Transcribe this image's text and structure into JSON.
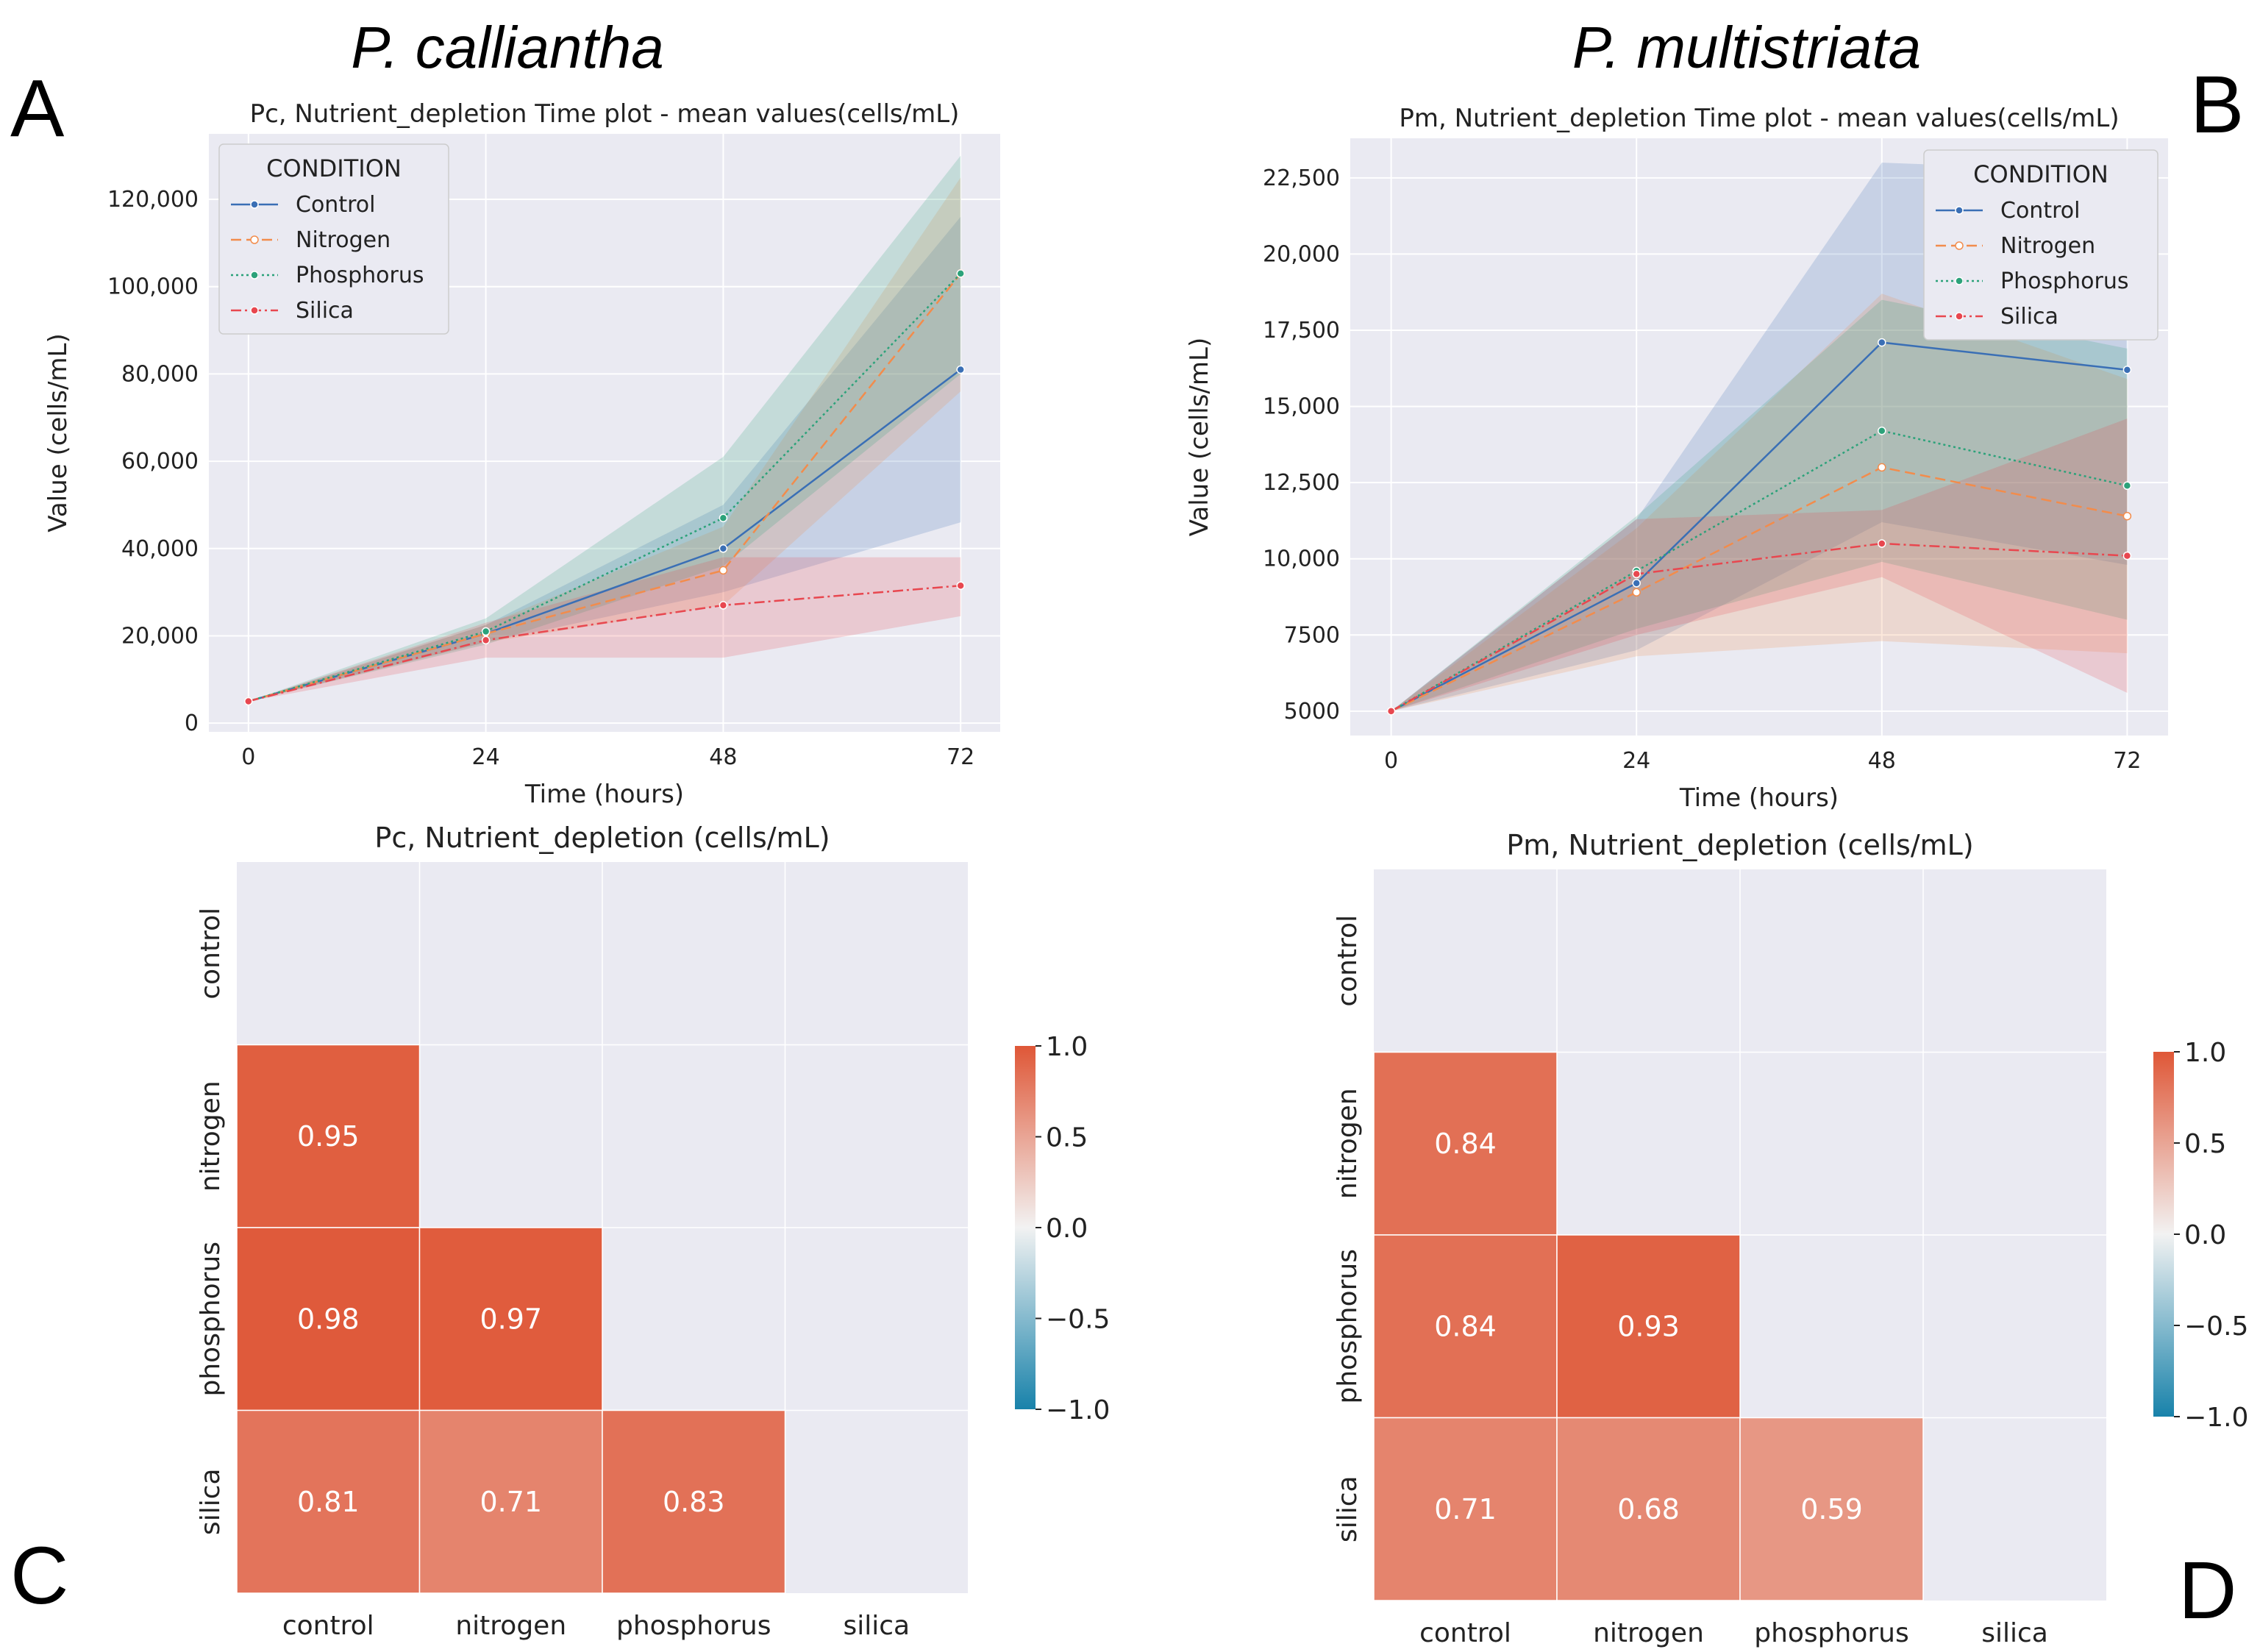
{
  "figure": {
    "species_left": "P. calliantha",
    "species_right": "P. multistriata",
    "panel_letters": [
      "A",
      "B",
      "C",
      "D"
    ]
  },
  "legend": {
    "title": "CONDITION",
    "entries": [
      "Control",
      "Nitrogen",
      "Phosphorus",
      "Silica"
    ]
  },
  "series_colors": {
    "Control": "#3a6fb5",
    "Nitrogen": "#f28c4c",
    "Phosphorus": "#2ca27a",
    "Silica": "#e8474f"
  },
  "chart_data": [
    {
      "type": "line",
      "title": "Pc, Nutrient_depletion Time plot - mean values(cells/mL)",
      "xlabel": "Time (hours)",
      "ylabel": "Value (cells/mL)",
      "x": [
        0,
        24,
        48,
        72
      ],
      "xticks": [
        "0",
        "24",
        "48",
        "72"
      ],
      "ylim": [
        -2000,
        135000
      ],
      "yticks": [
        0,
        20000,
        40000,
        60000,
        80000,
        100000,
        120000
      ],
      "ytick_labels": [
        "0",
        "20,000",
        "40,000",
        "60,000",
        "80,000",
        "100,000",
        "120,000"
      ],
      "legend_position": "upper-left",
      "series": [
        {
          "name": "Control",
          "values": [
            5000,
            20500,
            40000,
            81000
          ],
          "lower": [
            5000,
            18500,
            30000,
            46000
          ],
          "upper": [
            5000,
            22500,
            50000,
            116000
          ]
        },
        {
          "name": "Nitrogen",
          "values": [
            5000,
            20500,
            35000,
            103000
          ],
          "lower": [
            5000,
            18500,
            27000,
            76000
          ],
          "upper": [
            5000,
            22500,
            45000,
            125000
          ]
        },
        {
          "name": "Phosphorus",
          "values": [
            5000,
            21000,
            47000,
            103000
          ],
          "lower": [
            5000,
            18000,
            36000,
            80000
          ],
          "upper": [
            5000,
            24000,
            61000,
            130000
          ]
        },
        {
          "name": "Silica",
          "values": [
            5000,
            19000,
            27000,
            31500
          ],
          "lower": [
            5000,
            15000,
            15000,
            24500
          ],
          "upper": [
            5000,
            23000,
            38000,
            38000
          ]
        }
      ]
    },
    {
      "type": "line",
      "title": "Pm, Nutrient_depletion Time plot - mean values(cells/mL)",
      "xlabel": "Time (hours)",
      "ylabel": "Value (cells/mL)",
      "x": [
        0,
        24,
        48,
        72
      ],
      "xticks": [
        "0",
        "24",
        "48",
        "72"
      ],
      "ylim": [
        4200,
        23800
      ],
      "yticks": [
        5000,
        7500,
        10000,
        12500,
        15000,
        17500,
        20000,
        22500
      ],
      "ytick_labels": [
        "5000",
        "7500",
        "10,000",
        "12,500",
        "15,000",
        "17,500",
        "20,000",
        "22,500"
      ],
      "legend_position": "upper-right",
      "series": [
        {
          "name": "Control",
          "values": [
            5000,
            9200,
            17100,
            16200
          ],
          "lower": [
            5000,
            7000,
            11200,
            9800
          ],
          "upper": [
            5000,
            11300,
            23000,
            22700
          ]
        },
        {
          "name": "Nitrogen",
          "values": [
            5000,
            8900,
            13000,
            11400
          ],
          "lower": [
            5000,
            6800,
            7300,
            6900
          ],
          "upper": [
            5000,
            11000,
            18700,
            15900
          ]
        },
        {
          "name": "Phosphorus",
          "values": [
            5000,
            9600,
            14200,
            12400
          ],
          "lower": [
            5000,
            7700,
            9900,
            8000
          ],
          "upper": [
            5000,
            11400,
            18500,
            16900
          ]
        },
        {
          "name": "Silica",
          "values": [
            5000,
            9500,
            10500,
            10100
          ],
          "lower": [
            5000,
            7500,
            9400,
            5600
          ],
          "upper": [
            5000,
            11300,
            11600,
            14600
          ]
        }
      ]
    },
    {
      "type": "heatmap",
      "title": "Pc, Nutrient_depletion (cells/mL)",
      "categories": [
        "control",
        "nitrogen",
        "phosphorus",
        "silica"
      ],
      "values": [
        [
          null,
          null,
          null,
          null
        ],
        [
          0.95,
          null,
          null,
          null
        ],
        [
          0.98,
          0.97,
          null,
          null
        ],
        [
          0.81,
          0.71,
          0.83,
          null
        ]
      ],
      "labels": [
        [
          "",
          "",
          "",
          ""
        ],
        [
          "0.95",
          "",
          "",
          ""
        ],
        [
          "0.98",
          "0.97",
          "",
          ""
        ],
        [
          "0.81",
          "0.71",
          "0.83",
          ""
        ]
      ],
      "colorbar": {
        "range": [
          -1.0,
          1.0
        ],
        "tick_labels": [
          "1.0",
          "0.5",
          "0.0",
          "−0.5",
          "−1.0"
        ]
      }
    },
    {
      "type": "heatmap",
      "title": "Pm, Nutrient_depletion (cells/mL)",
      "categories": [
        "control",
        "nitrogen",
        "phosphorus",
        "silica"
      ],
      "values": [
        [
          null,
          null,
          null,
          null
        ],
        [
          0.84,
          null,
          null,
          null
        ],
        [
          0.84,
          0.93,
          null,
          null
        ],
        [
          0.71,
          0.68,
          0.59,
          null
        ]
      ],
      "labels": [
        [
          "",
          "",
          "",
          ""
        ],
        [
          "0.84",
          "",
          "",
          ""
        ],
        [
          "0.84",
          "0.93",
          "",
          ""
        ],
        [
          "0.71",
          "0.68",
          "0.59",
          ""
        ]
      ],
      "colorbar": {
        "range": [
          -1.0,
          1.0
        ],
        "tick_labels": [
          "1.0",
          "0.5",
          "0.0",
          "−0.5",
          "−1.0"
        ]
      }
    }
  ]
}
